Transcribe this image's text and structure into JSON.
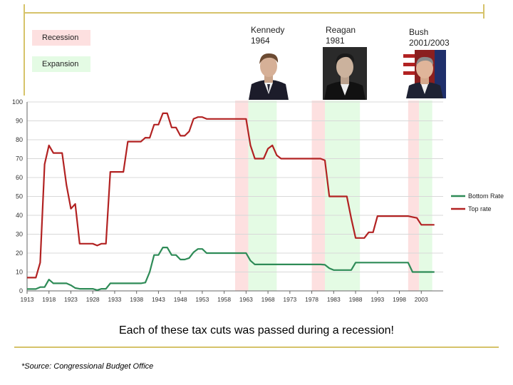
{
  "legend": {
    "recession": {
      "label": "Recession",
      "color": "#fde0e0"
    },
    "expansion": {
      "label": "Expansion",
      "color": "#e4fbe4"
    }
  },
  "presidents": [
    {
      "name": "Kennedy",
      "year": "1964",
      "icon": "kennedy-portrait"
    },
    {
      "name": "Reagan",
      "year": "1981",
      "icon": "reagan-portrait"
    },
    {
      "name": "Bush",
      "year": "2001/2003",
      "icon": "bush-portrait"
    }
  ],
  "caption": "Each of these tax cuts was passed during a recession!",
  "source": "*Source: Congressional Budget Office",
  "colors": {
    "rule": "#d6c36a",
    "top_rate": "#b22222",
    "bottom_rate": "#2e8b57"
  },
  "chart_data": {
    "type": "line",
    "title": "",
    "xlabel": "",
    "ylabel": "",
    "xlim": [
      1913,
      2008
    ],
    "ylim": [
      0,
      100
    ],
    "yticks": [
      0,
      10,
      20,
      30,
      40,
      50,
      60,
      70,
      80,
      90,
      100
    ],
    "xticks": [
      1913,
      1918,
      1923,
      1928,
      1933,
      1938,
      1943,
      1948,
      1953,
      1958,
      1963,
      1968,
      1973,
      1978,
      1983,
      1988,
      1993,
      1998,
      2003
    ],
    "grid": true,
    "legend_position": "right",
    "bands": [
      {
        "kind": "recession",
        "x": [
          1960.5,
          1963.5
        ]
      },
      {
        "kind": "expansion",
        "x": [
          1963.5,
          1970
        ]
      },
      {
        "kind": "recession",
        "x": [
          1978,
          1981
        ]
      },
      {
        "kind": "expansion",
        "x": [
          1981,
          1989
        ]
      },
      {
        "kind": "recession",
        "x": [
          2000,
          2002.5
        ]
      },
      {
        "kind": "expansion",
        "x": [
          2002.5,
          2005.5
        ]
      }
    ],
    "series": [
      {
        "name": "Bottom Rate",
        "color": "#2e8b57",
        "points": [
          [
            1913,
            1
          ],
          [
            1915,
            1
          ],
          [
            1916,
            2
          ],
          [
            1917,
            2
          ],
          [
            1918,
            6
          ],
          [
            1919,
            4
          ],
          [
            1920,
            4
          ],
          [
            1921,
            4
          ],
          [
            1922,
            4
          ],
          [
            1923,
            3
          ],
          [
            1924,
            1.5
          ],
          [
            1925,
            1.1
          ],
          [
            1926,
            1.1
          ],
          [
            1927,
            1.1
          ],
          [
            1928,
            1.1
          ],
          [
            1929,
            0.4
          ],
          [
            1930,
            1.1
          ],
          [
            1931,
            1.1
          ],
          [
            1932,
            4
          ],
          [
            1933,
            4
          ],
          [
            1934,
            4
          ],
          [
            1935,
            4
          ],
          [
            1936,
            4
          ],
          [
            1937,
            4
          ],
          [
            1938,
            4
          ],
          [
            1939,
            4
          ],
          [
            1940,
            4.4
          ],
          [
            1941,
            10
          ],
          [
            1942,
            19
          ],
          [
            1943,
            19
          ],
          [
            1944,
            23
          ],
          [
            1945,
            23
          ],
          [
            1946,
            19
          ],
          [
            1947,
            19
          ],
          [
            1948,
            16.6
          ],
          [
            1949,
            16.6
          ],
          [
            1950,
            17.4
          ],
          [
            1951,
            20.4
          ],
          [
            1952,
            22.2
          ],
          [
            1953,
            22.2
          ],
          [
            1954,
            20
          ],
          [
            1955,
            20
          ],
          [
            1956,
            20
          ],
          [
            1957,
            20
          ],
          [
            1958,
            20
          ],
          [
            1959,
            20
          ],
          [
            1960,
            20
          ],
          [
            1961,
            20
          ],
          [
            1962,
            20
          ],
          [
            1963,
            20
          ],
          [
            1964,
            16
          ],
          [
            1965,
            14
          ],
          [
            1966,
            14
          ],
          [
            1967,
            14
          ],
          [
            1968,
            14
          ],
          [
            1969,
            14
          ],
          [
            1970,
            14
          ],
          [
            1971,
            14
          ],
          [
            1972,
            14
          ],
          [
            1973,
            14
          ],
          [
            1974,
            14
          ],
          [
            1975,
            14
          ],
          [
            1976,
            14
          ],
          [
            1977,
            14
          ],
          [
            1978,
            14
          ],
          [
            1979,
            14
          ],
          [
            1980,
            14
          ],
          [
            1981,
            13.8
          ],
          [
            1982,
            12
          ],
          [
            1983,
            11
          ],
          [
            1984,
            11
          ],
          [
            1985,
            11
          ],
          [
            1986,
            11
          ],
          [
            1987,
            11
          ],
          [
            1988,
            15
          ],
          [
            1989,
            15
          ],
          [
            1990,
            15
          ],
          [
            1991,
            15
          ],
          [
            1992,
            15
          ],
          [
            1993,
            15
          ],
          [
            1994,
            15
          ],
          [
            1995,
            15
          ],
          [
            1996,
            15
          ],
          [
            1997,
            15
          ],
          [
            1998,
            15
          ],
          [
            1999,
            15
          ],
          [
            2000,
            15
          ],
          [
            2001,
            10
          ],
          [
            2002,
            10
          ],
          [
            2003,
            10
          ],
          [
            2004,
            10
          ],
          [
            2005,
            10
          ],
          [
            2006,
            10
          ]
        ]
      },
      {
        "name": "Top rate",
        "color": "#b22222",
        "points": [
          [
            1913,
            7
          ],
          [
            1915,
            7
          ],
          [
            1916,
            15
          ],
          [
            1917,
            67
          ],
          [
            1918,
            77
          ],
          [
            1919,
            73
          ],
          [
            1920,
            73
          ],
          [
            1921,
            73
          ],
          [
            1922,
            56
          ],
          [
            1923,
            43.5
          ],
          [
            1924,
            46
          ],
          [
            1925,
            25
          ],
          [
            1926,
            25
          ],
          [
            1927,
            25
          ],
          [
            1928,
            25
          ],
          [
            1929,
            24
          ],
          [
            1930,
            25
          ],
          [
            1931,
            25
          ],
          [
            1932,
            63
          ],
          [
            1933,
            63
          ],
          [
            1934,
            63
          ],
          [
            1935,
            63
          ],
          [
            1936,
            79
          ],
          [
            1937,
            79
          ],
          [
            1938,
            79
          ],
          [
            1939,
            79
          ],
          [
            1940,
            81.1
          ],
          [
            1941,
            81
          ],
          [
            1942,
            88
          ],
          [
            1943,
            88
          ],
          [
            1944,
            94
          ],
          [
            1945,
            94
          ],
          [
            1946,
            86.5
          ],
          [
            1947,
            86.5
          ],
          [
            1948,
            82.1
          ],
          [
            1949,
            82.1
          ],
          [
            1950,
            84.4
          ],
          [
            1951,
            91
          ],
          [
            1952,
            92
          ],
          [
            1953,
            92
          ],
          [
            1954,
            91
          ],
          [
            1955,
            91
          ],
          [
            1956,
            91
          ],
          [
            1957,
            91
          ],
          [
            1958,
            91
          ],
          [
            1959,
            91
          ],
          [
            1960,
            91
          ],
          [
            1961,
            91
          ],
          [
            1962,
            91
          ],
          [
            1963,
            91
          ],
          [
            1964,
            77
          ],
          [
            1965,
            70
          ],
          [
            1966,
            70
          ],
          [
            1967,
            70
          ],
          [
            1968,
            75.3
          ],
          [
            1969,
            77
          ],
          [
            1970,
            71.8
          ],
          [
            1971,
            70
          ],
          [
            1972,
            70
          ],
          [
            1973,
            70
          ],
          [
            1974,
            70
          ],
          [
            1975,
            70
          ],
          [
            1976,
            70
          ],
          [
            1977,
            70
          ],
          [
            1978,
            70
          ],
          [
            1979,
            70
          ],
          [
            1980,
            70
          ],
          [
            1981,
            69.1
          ],
          [
            1982,
            50
          ],
          [
            1983,
            50
          ],
          [
            1984,
            50
          ],
          [
            1985,
            50
          ],
          [
            1986,
            50
          ],
          [
            1987,
            38.5
          ],
          [
            1988,
            28
          ],
          [
            1989,
            28
          ],
          [
            1990,
            28
          ],
          [
            1991,
            31
          ],
          [
            1992,
            31
          ],
          [
            1993,
            39.6
          ],
          [
            1994,
            39.6
          ],
          [
            1995,
            39.6
          ],
          [
            1996,
            39.6
          ],
          [
            1997,
            39.6
          ],
          [
            1998,
            39.6
          ],
          [
            1999,
            39.6
          ],
          [
            2000,
            39.6
          ],
          [
            2001,
            39.1
          ],
          [
            2002,
            38.6
          ],
          [
            2003,
            35
          ],
          [
            2004,
            35
          ],
          [
            2005,
            35
          ],
          [
            2006,
            35
          ]
        ]
      }
    ]
  }
}
